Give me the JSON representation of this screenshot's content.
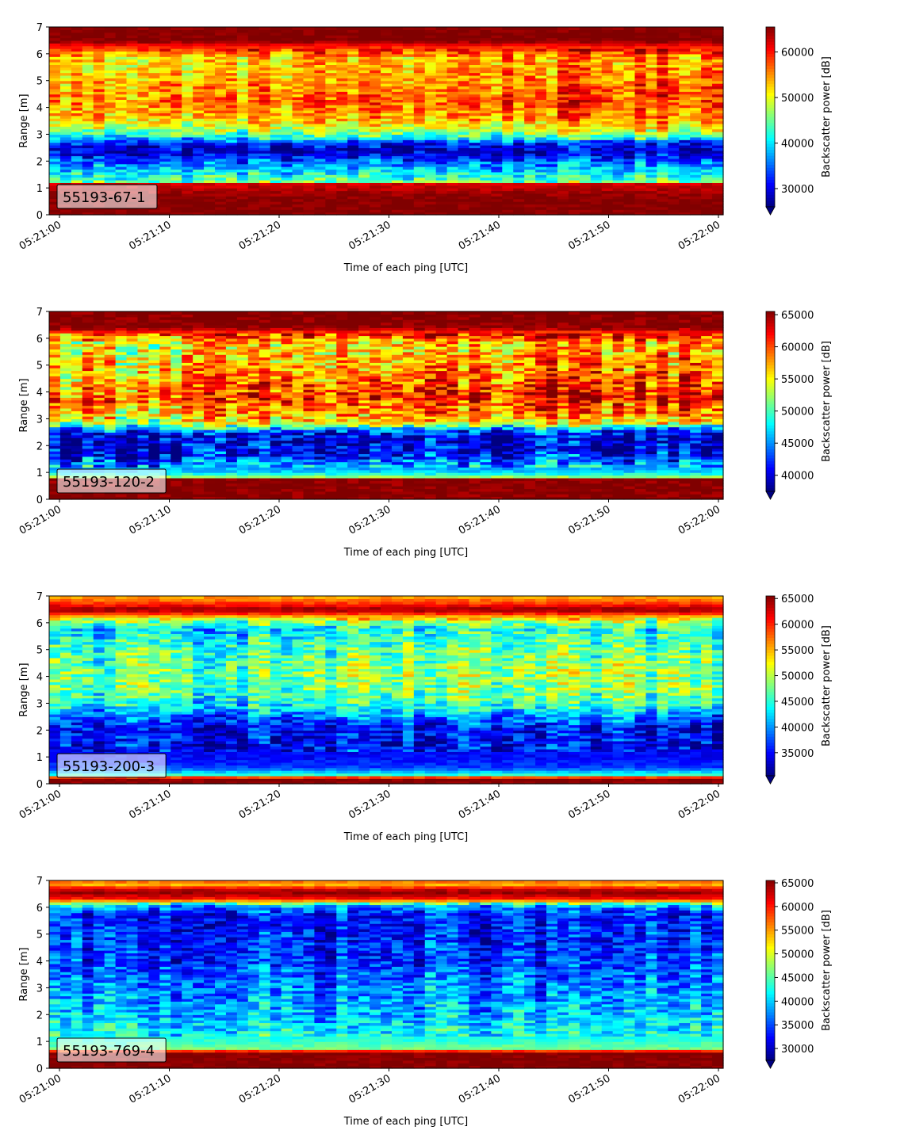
{
  "chart_data": [
    {
      "type": "heatmap",
      "label": "55193-67-1",
      "xlabel": "Time of each ping [UTC]",
      "ylabel": "Range [m]",
      "x_ticks": [
        "05:21:00",
        "05:21:10",
        "05:21:20",
        "05:21:30",
        "05:21:40",
        "05:21:50",
        "05:22:00"
      ],
      "y_ticks": [
        0,
        1,
        2,
        3,
        4,
        5,
        6,
        7
      ],
      "ylim": [
        0,
        7
      ],
      "colorbar_label": "Backscatter power [dB]",
      "colorbar_ticks": [
        30000,
        40000,
        50000,
        60000
      ],
      "colorbar_range": [
        26000,
        65500
      ],
      "colormap": "jet",
      "range_profile": [
        [
          0.0,
          65500
        ],
        [
          0.25,
          65500
        ],
        [
          0.6,
          65500
        ],
        [
          1.2,
          62000
        ],
        [
          1.25,
          45000
        ],
        [
          1.6,
          40000
        ],
        [
          2.0,
          35000
        ],
        [
          2.3,
          29000
        ],
        [
          2.6,
          30000
        ],
        [
          2.9,
          40000
        ],
        [
          3.2,
          47000
        ],
        [
          3.6,
          52000
        ],
        [
          4.2,
          55000
        ],
        [
          5.0,
          53000
        ],
        [
          5.8,
          51000
        ],
        [
          6.3,
          60000
        ],
        [
          6.5,
          65500
        ],
        [
          7.0,
          65500
        ]
      ]
    },
    {
      "type": "heatmap",
      "label": "55193-120-2",
      "xlabel": "Time of each ping [UTC]",
      "ylabel": "Range [m]",
      "x_ticks": [
        "05:21:00",
        "05:21:10",
        "05:21:20",
        "05:21:30",
        "05:21:40",
        "05:21:50",
        "05:22:00"
      ],
      "y_ticks": [
        0,
        1,
        2,
        3,
        4,
        5,
        6,
        7
      ],
      "ylim": [
        0,
        7
      ],
      "colorbar_label": "Backscatter power [dB]",
      "colorbar_ticks": [
        40000,
        45000,
        50000,
        55000,
        60000,
        65000
      ],
      "colorbar_range": [
        37500,
        65500
      ],
      "colormap": "jet",
      "range_profile": [
        [
          0.0,
          65500
        ],
        [
          0.25,
          65500
        ],
        [
          0.75,
          65500
        ],
        [
          0.85,
          52000
        ],
        [
          1.0,
          47000
        ],
        [
          1.4,
          44000
        ],
        [
          1.8,
          40000
        ],
        [
          2.2,
          39500
        ],
        [
          2.5,
          41000
        ],
        [
          2.8,
          52000
        ],
        [
          3.2,
          56000
        ],
        [
          3.8,
          59000
        ],
        [
          4.5,
          57000
        ],
        [
          5.2,
          55000
        ],
        [
          5.8,
          54000
        ],
        [
          6.2,
          60000
        ],
        [
          6.4,
          65500
        ],
        [
          7.0,
          65500
        ]
      ]
    },
    {
      "type": "heatmap",
      "label": "55193-200-3",
      "xlabel": "Time of each ping [UTC]",
      "ylabel": "Range [m]",
      "x_ticks": [
        "05:21:00",
        "05:21:10",
        "05:21:20",
        "05:21:30",
        "05:21:40",
        "05:21:50",
        "05:22:00"
      ],
      "y_ticks": [
        0,
        1,
        2,
        3,
        4,
        5,
        6,
        7
      ],
      "ylim": [
        0,
        7
      ],
      "colorbar_label": "Backscatter power [dB]",
      "colorbar_ticks": [
        35000,
        40000,
        45000,
        50000,
        55000,
        60000,
        65000
      ],
      "colorbar_range": [
        30500,
        65500
      ],
      "colormap": "jet",
      "range_profile": [
        [
          0.0,
          65500
        ],
        [
          0.2,
          65500
        ],
        [
          0.35,
          45000
        ],
        [
          0.6,
          37000
        ],
        [
          1.0,
          35000
        ],
        [
          1.6,
          34000
        ],
        [
          2.2,
          35000
        ],
        [
          2.8,
          42000
        ],
        [
          3.5,
          46000
        ],
        [
          4.2,
          47000
        ],
        [
          5.0,
          45000
        ],
        [
          5.8,
          42000
        ],
        [
          6.1,
          48000
        ],
        [
          6.3,
          58000
        ],
        [
          6.5,
          65000
        ],
        [
          6.7,
          60000
        ],
        [
          7.0,
          55000
        ]
      ]
    },
    {
      "type": "heatmap",
      "label": "55193-769-4",
      "xlabel": "Time of each ping [UTC]",
      "ylabel": "Range [m]",
      "x_ticks": [
        "05:21:00",
        "05:21:10",
        "05:21:20",
        "05:21:30",
        "05:21:40",
        "05:21:50",
        "05:22:00"
      ],
      "y_ticks": [
        0,
        1,
        2,
        3,
        4,
        5,
        6,
        7
      ],
      "ylim": [
        0,
        7
      ],
      "colorbar_label": "Backscatter power [dB]",
      "colorbar_ticks": [
        30000,
        35000,
        40000,
        45000,
        50000,
        55000,
        60000,
        65000
      ],
      "colorbar_range": [
        27500,
        65500
      ],
      "colormap": "jet",
      "range_profile": [
        [
          0.0,
          65500
        ],
        [
          0.25,
          65500
        ],
        [
          0.6,
          65500
        ],
        [
          0.75,
          46000
        ],
        [
          1.2,
          42000
        ],
        [
          2.0,
          39000
        ],
        [
          3.0,
          37000
        ],
        [
          4.0,
          34000
        ],
        [
          5.0,
          33000
        ],
        [
          5.8,
          33000
        ],
        [
          6.1,
          40000
        ],
        [
          6.3,
          60000
        ],
        [
          6.6,
          65500
        ],
        [
          6.9,
          52000
        ],
        [
          7.0,
          60000
        ]
      ]
    }
  ]
}
